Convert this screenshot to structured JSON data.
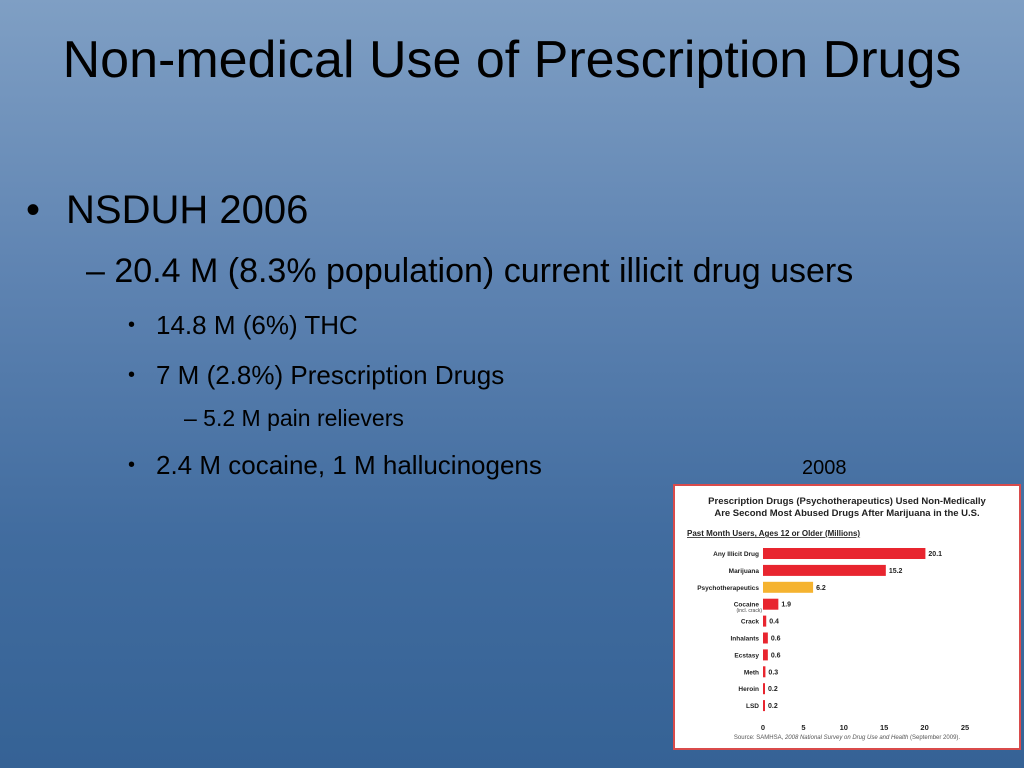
{
  "slide": {
    "title": "Non-medical Use of Prescription Drugs",
    "bullet1": "NSDUH 2006",
    "bullet2": "– 20.4 M (8.3% population) current illicit drug users",
    "bullet3a": "14.8 M (6%) THC",
    "bullet3b": "7 M (2.8%) Prescription Drugs",
    "bullet4": "– 5.2 M pain relievers",
    "bullet3c": "2.4 M cocaine, 1 M hallucinogens",
    "bullet_marker": "•",
    "year_label": "2008"
  },
  "chart_data": {
    "type": "bar",
    "orientation": "horizontal",
    "title_line1": "Prescription Drugs (Psychotherapeutics) Used Non-Medically",
    "title_line2": "Are Second Most Abused Drugs After Marijuana in the U.S.",
    "subtitle": "Past Month Users, Ages 12 or Older (Millions)",
    "categories": [
      "Any Illicit Drug",
      "Marijuana",
      "Psychotherapeutics",
      "Cocaine",
      "Crack",
      "Inhalants",
      "Ecstasy",
      "Meth",
      "Heroin",
      "LSD"
    ],
    "category_note": "(incl. crack)",
    "values": [
      20.1,
      15.2,
      6.2,
      1.9,
      0.4,
      0.6,
      0.6,
      0.3,
      0.2,
      0.2
    ],
    "value_labels": [
      "20.1",
      "15.2",
      "6.2",
      "1.9",
      "0.4",
      "0.6",
      "0.6",
      "0.3",
      "0.2",
      "0.2"
    ],
    "highlight_index": 2,
    "colors": {
      "bar": "#e8252f",
      "highlight": "#f5b330",
      "frame": "#d94b4b"
    },
    "xlim": [
      0,
      25
    ],
    "xticks": [
      "0",
      "5",
      "10",
      "15",
      "20",
      "25"
    ],
    "source_prefix": "Source:  SAMHSA, ",
    "source_italic": "2008 National Survey on Drug Use and Health",
    "source_suffix": " (September 2009)."
  }
}
